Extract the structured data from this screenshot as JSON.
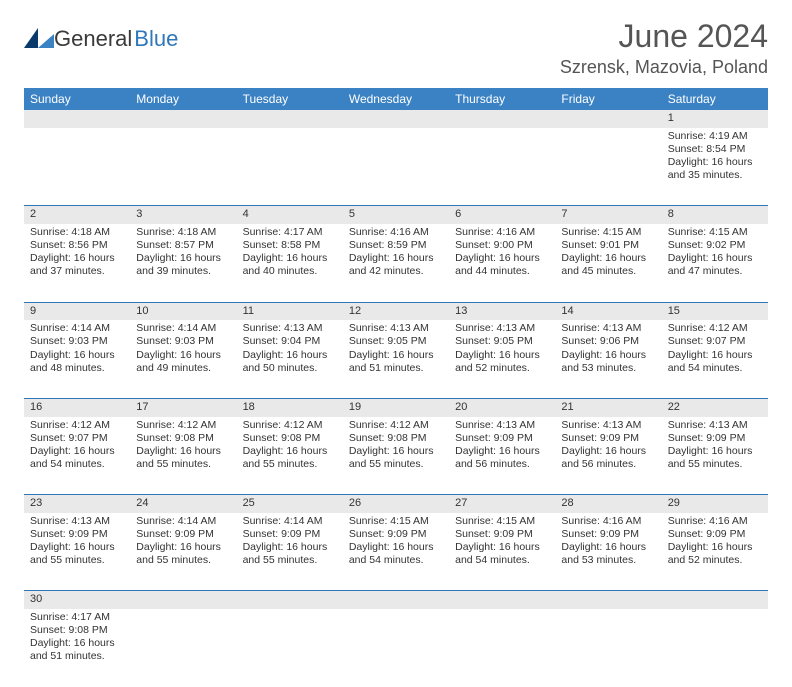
{
  "logo": {
    "part1": "General",
    "part2": "Blue"
  },
  "title": "June 2024",
  "location": "Szrensk, Mazovia, Poland",
  "day_headers": [
    "Sunday",
    "Monday",
    "Tuesday",
    "Wednesday",
    "Thursday",
    "Friday",
    "Saturday"
  ],
  "colors": {
    "header_bg": "#3b82c4",
    "header_fg": "#ffffff",
    "daynum_bg": "#e9e9e9",
    "border": "#2f77b9",
    "logo_blue": "#2f77b9"
  },
  "weeks": [
    [
      null,
      null,
      null,
      null,
      null,
      null,
      {
        "n": "1",
        "sr": "Sunrise: 4:19 AM",
        "ss": "Sunset: 8:54 PM",
        "d1": "Daylight: 16 hours",
        "d2": "and 35 minutes."
      }
    ],
    [
      {
        "n": "2",
        "sr": "Sunrise: 4:18 AM",
        "ss": "Sunset: 8:56 PM",
        "d1": "Daylight: 16 hours",
        "d2": "and 37 minutes."
      },
      {
        "n": "3",
        "sr": "Sunrise: 4:18 AM",
        "ss": "Sunset: 8:57 PM",
        "d1": "Daylight: 16 hours",
        "d2": "and 39 minutes."
      },
      {
        "n": "4",
        "sr": "Sunrise: 4:17 AM",
        "ss": "Sunset: 8:58 PM",
        "d1": "Daylight: 16 hours",
        "d2": "and 40 minutes."
      },
      {
        "n": "5",
        "sr": "Sunrise: 4:16 AM",
        "ss": "Sunset: 8:59 PM",
        "d1": "Daylight: 16 hours",
        "d2": "and 42 minutes."
      },
      {
        "n": "6",
        "sr": "Sunrise: 4:16 AM",
        "ss": "Sunset: 9:00 PM",
        "d1": "Daylight: 16 hours",
        "d2": "and 44 minutes."
      },
      {
        "n": "7",
        "sr": "Sunrise: 4:15 AM",
        "ss": "Sunset: 9:01 PM",
        "d1": "Daylight: 16 hours",
        "d2": "and 45 minutes."
      },
      {
        "n": "8",
        "sr": "Sunrise: 4:15 AM",
        "ss": "Sunset: 9:02 PM",
        "d1": "Daylight: 16 hours",
        "d2": "and 47 minutes."
      }
    ],
    [
      {
        "n": "9",
        "sr": "Sunrise: 4:14 AM",
        "ss": "Sunset: 9:03 PM",
        "d1": "Daylight: 16 hours",
        "d2": "and 48 minutes."
      },
      {
        "n": "10",
        "sr": "Sunrise: 4:14 AM",
        "ss": "Sunset: 9:03 PM",
        "d1": "Daylight: 16 hours",
        "d2": "and 49 minutes."
      },
      {
        "n": "11",
        "sr": "Sunrise: 4:13 AM",
        "ss": "Sunset: 9:04 PM",
        "d1": "Daylight: 16 hours",
        "d2": "and 50 minutes."
      },
      {
        "n": "12",
        "sr": "Sunrise: 4:13 AM",
        "ss": "Sunset: 9:05 PM",
        "d1": "Daylight: 16 hours",
        "d2": "and 51 minutes."
      },
      {
        "n": "13",
        "sr": "Sunrise: 4:13 AM",
        "ss": "Sunset: 9:05 PM",
        "d1": "Daylight: 16 hours",
        "d2": "and 52 minutes."
      },
      {
        "n": "14",
        "sr": "Sunrise: 4:13 AM",
        "ss": "Sunset: 9:06 PM",
        "d1": "Daylight: 16 hours",
        "d2": "and 53 minutes."
      },
      {
        "n": "15",
        "sr": "Sunrise: 4:12 AM",
        "ss": "Sunset: 9:07 PM",
        "d1": "Daylight: 16 hours",
        "d2": "and 54 minutes."
      }
    ],
    [
      {
        "n": "16",
        "sr": "Sunrise: 4:12 AM",
        "ss": "Sunset: 9:07 PM",
        "d1": "Daylight: 16 hours",
        "d2": "and 54 minutes."
      },
      {
        "n": "17",
        "sr": "Sunrise: 4:12 AM",
        "ss": "Sunset: 9:08 PM",
        "d1": "Daylight: 16 hours",
        "d2": "and 55 minutes."
      },
      {
        "n": "18",
        "sr": "Sunrise: 4:12 AM",
        "ss": "Sunset: 9:08 PM",
        "d1": "Daylight: 16 hours",
        "d2": "and 55 minutes."
      },
      {
        "n": "19",
        "sr": "Sunrise: 4:12 AM",
        "ss": "Sunset: 9:08 PM",
        "d1": "Daylight: 16 hours",
        "d2": "and 55 minutes."
      },
      {
        "n": "20",
        "sr": "Sunrise: 4:13 AM",
        "ss": "Sunset: 9:09 PM",
        "d1": "Daylight: 16 hours",
        "d2": "and 56 minutes."
      },
      {
        "n": "21",
        "sr": "Sunrise: 4:13 AM",
        "ss": "Sunset: 9:09 PM",
        "d1": "Daylight: 16 hours",
        "d2": "and 56 minutes."
      },
      {
        "n": "22",
        "sr": "Sunrise: 4:13 AM",
        "ss": "Sunset: 9:09 PM",
        "d1": "Daylight: 16 hours",
        "d2": "and 55 minutes."
      }
    ],
    [
      {
        "n": "23",
        "sr": "Sunrise: 4:13 AM",
        "ss": "Sunset: 9:09 PM",
        "d1": "Daylight: 16 hours",
        "d2": "and 55 minutes."
      },
      {
        "n": "24",
        "sr": "Sunrise: 4:14 AM",
        "ss": "Sunset: 9:09 PM",
        "d1": "Daylight: 16 hours",
        "d2": "and 55 minutes."
      },
      {
        "n": "25",
        "sr": "Sunrise: 4:14 AM",
        "ss": "Sunset: 9:09 PM",
        "d1": "Daylight: 16 hours",
        "d2": "and 55 minutes."
      },
      {
        "n": "26",
        "sr": "Sunrise: 4:15 AM",
        "ss": "Sunset: 9:09 PM",
        "d1": "Daylight: 16 hours",
        "d2": "and 54 minutes."
      },
      {
        "n": "27",
        "sr": "Sunrise: 4:15 AM",
        "ss": "Sunset: 9:09 PM",
        "d1": "Daylight: 16 hours",
        "d2": "and 54 minutes."
      },
      {
        "n": "28",
        "sr": "Sunrise: 4:16 AM",
        "ss": "Sunset: 9:09 PM",
        "d1": "Daylight: 16 hours",
        "d2": "and 53 minutes."
      },
      {
        "n": "29",
        "sr": "Sunrise: 4:16 AM",
        "ss": "Sunset: 9:09 PM",
        "d1": "Daylight: 16 hours",
        "d2": "and 52 minutes."
      }
    ],
    [
      {
        "n": "30",
        "sr": "Sunrise: 4:17 AM",
        "ss": "Sunset: 9:08 PM",
        "d1": "Daylight: 16 hours",
        "d2": "and 51 minutes."
      },
      null,
      null,
      null,
      null,
      null,
      null
    ]
  ]
}
